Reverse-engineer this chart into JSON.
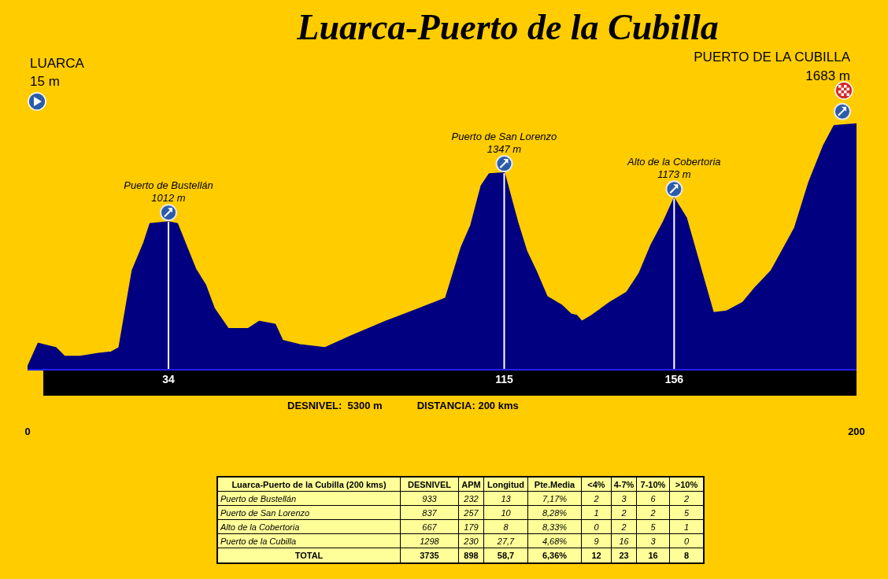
{
  "chart_data": [
    {
      "type": "area",
      "title": "Luarca-Puerto de la Cubilla",
      "x": [
        0,
        2.6,
        6.8,
        8.9,
        12.7,
        17.1,
        20.2,
        22.1,
        25.3,
        28.1,
        29.6,
        34,
        36.1,
        40.5,
        42.9,
        45,
        48.4,
        53.2,
        55.9,
        59.7,
        61.5,
        65.7,
        71.8,
        78,
        86.4,
        94.6,
        100.9,
        104.7,
        107,
        109.5,
        111.4,
        115,
        118.2,
        120.4,
        122.6,
        125.3,
        128.9,
        131.1,
        132.5,
        133.7,
        136.1,
        140.5,
        144.6,
        147.6,
        150.4,
        153.4,
        156,
        158.9,
        161.8,
        163.9,
        165.4,
        168.6,
        172.6,
        175.5,
        179.5,
        182.4,
        185.1,
        188.5,
        192,
        194.6,
        200
      ],
      "values": [
        15,
        180,
        150,
        90,
        90,
        110,
        120,
        150,
        680,
        870,
        1000,
        1012,
        1000,
        690,
        580,
        420,
        280,
        280,
        330,
        310,
        200,
        170,
        150,
        230,
        330,
        420,
        490,
        840,
        990,
        1260,
        1340,
        1347,
        1010,
        810,
        680,
        500,
        440,
        380,
        370,
        330,
        370,
        460,
        530,
        660,
        850,
        1010,
        1173,
        1040,
        750,
        540,
        390,
        400,
        460,
        560,
        680,
        830,
        970,
        1280,
        1530,
        1670,
        1683
      ],
      "value_labels": [
        null,
        null,
        null,
        null,
        null,
        null,
        null,
        null,
        null,
        null,
        null,
        "1012 m",
        null,
        null,
        null,
        null,
        null,
        null,
        null,
        null,
        null,
        null,
        null,
        null,
        null,
        null,
        null,
        null,
        null,
        null,
        null,
        "1347 m",
        null,
        null,
        null,
        null,
        null,
        null,
        null,
        null,
        null,
        null,
        null,
        null,
        null,
        null,
        "1173 m",
        null,
        null,
        null,
        null,
        null,
        null,
        null,
        null,
        null,
        null,
        null,
        null,
        null,
        null
      ],
      "color": "#000080",
      "xlim": [
        0,
        200
      ],
      "xticks": [
        0,
        200
      ],
      "tick_labels": "x",
      "ref_lines": [
        {
          "axis": "x",
          "value": 34,
          "label": "34",
          "color": "#ffffff"
        },
        {
          "axis": "x",
          "value": 115,
          "label": "115",
          "color": "#ffffff"
        },
        {
          "axis": "x",
          "value": 156,
          "label": "156",
          "color": "#ffffff"
        }
      ],
      "annotations": [
        "LUARCA",
        "15 m",
        "PUERTO DE LA CUBILLA",
        "1683 m",
        "DESNIVEL:  5300 m",
        "DISTANCIA: 200 kms",
        "Puerto de Bustellán",
        "Puerto de San Lorenzo",
        "Alto de la Cobertoria"
      ]
    },
    {
      "type": "other",
      "title": "Luarca-Puerto de la Cubilla (200 kms)",
      "categories": [
        "DESNIVEL",
        "APM",
        "Longitud",
        "Pte.Media",
        "<4%",
        "4-7%",
        "7-10%",
        ">10%"
      ],
      "y_categories": [
        "Puerto de Bustellán",
        "Puerto de San Lorenzo",
        "Alto de la Cobertoria",
        "Puerto de la Cubilla",
        "TOTAL"
      ],
      "cell_labels": [
        [
          "933",
          "232",
          "13",
          "7,17%",
          "2",
          "3",
          "6",
          "2"
        ],
        [
          "837",
          "257",
          "10",
          "8,28%",
          "1",
          "2",
          "2",
          "5"
        ],
        [
          "667",
          "179",
          "8",
          "8,33%",
          "0",
          "2",
          "5",
          "1"
        ],
        [
          "1298",
          "230",
          "27,7",
          "4,68%",
          "9",
          "16",
          "3",
          "0"
        ],
        [
          "3735",
          "898",
          "58,7",
          "6,36%",
          "12",
          "23",
          "16",
          "8"
        ]
      ]
    }
  ]
}
